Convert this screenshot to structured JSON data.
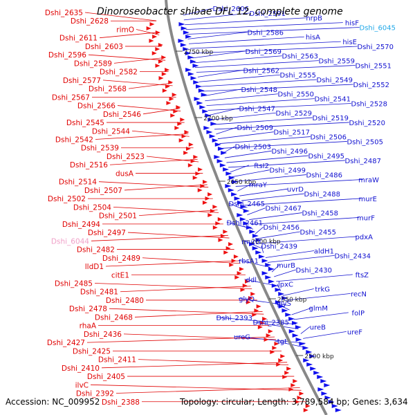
{
  "title": "Dinoroseobacter shibae DFL 12, complete genome",
  "footer": {
    "accession": "Accession: NC_009952",
    "summary": "Topology: circular; Length: 3,789,584 bp; Genes: 3,634"
  },
  "colors": {
    "left_labels": "#e00000",
    "right_labels": "#1010d0",
    "highlight": "#20a8e8",
    "ruler": "#888888",
    "tick_mark": "#2a8a2a",
    "left_arrows": "#ee1111",
    "right_arrows": "#1111ee"
  },
  "ruler_ticks": [
    "2750 kbp",
    "2700 kbp",
    "2650 kbp",
    "2600 kbp",
    "2550 kbp",
    "2500 kbp"
  ],
  "left_labels": [
    "Dshi_2635",
    "Dshi_2628",
    "rimO",
    "Dshi_2611",
    "Dshi_2603",
    "Dshi_2596",
    "Dshi_2589",
    "Dshi_2582",
    "Dshi_2577",
    "Dshi_2568",
    "Dshi_2567",
    "Dshi_2566",
    "Dshi_2546",
    "Dshi_2545",
    "Dshi_2544",
    "Dshi_2542",
    "Dshi_2539",
    "Dshi_2523",
    "Dshi_2516",
    "dusA",
    "Dshi_2514",
    "Dshi_2507",
    "Dshi_2502",
    "Dshi_2504",
    "Dshi_2501",
    "Dshi_2494",
    "Dshi_2497",
    "Dshi_6044",
    "Dshi_2482",
    "Dshi_2489",
    "lldD1",
    "citE1",
    "Dshi_2485",
    "Dshi_2481",
    "Dshi_2480",
    "Dshi_2478",
    "Dshi_2468",
    "rhaA",
    "Dshi_2436",
    "Dshi_2427",
    "Dshi_2425",
    "Dshi_2411",
    "Dshi_2410",
    "Dshi_2405",
    "ilvC",
    "Dshi_2392",
    "Dshi_2388"
  ],
  "right_labels": [
    "Dshi_2606",
    "Dshi_2591",
    "hrpB",
    "hisF",
    "Dshi_6045",
    "Dshi_2586",
    "hisA",
    "hisE",
    "Dshi_2570",
    "Dshi_2569",
    "Dshi_2563",
    "Dshi_2559",
    "Dshi_2551",
    "Dshi_2562",
    "Dshi_2555",
    "Dshi_2549",
    "Dshi_2552",
    "Dshi_2548",
    "Dshi_2550",
    "Dshi_2541",
    "Dshi_2528",
    "Dshi_2547",
    "Dshi_2529",
    "Dshi_2519",
    "Dshi_2520",
    "Dshi_2509",
    "Dshi_2517",
    "Dshi_2506",
    "Dshi_2505",
    "Dshi_2503",
    "Dshi_2496",
    "Dshi_2495",
    "Dshi_2487",
    "ftsI2",
    "Dshi_2499",
    "Dshi_2486",
    "mraW",
    "mraY",
    "uvrD",
    "Dshi_2488",
    "murE",
    "Dshi_2465",
    "Dshi_2467",
    "Dshi_2458",
    "murF",
    "Dshi_2461",
    "Dshi_2456",
    "Dshi_2455",
    "pdxA",
    "murD",
    "Dshi_2439",
    "aldH1",
    "Dshi_2434",
    "rbsA1",
    "murB",
    "Dshi_2430",
    "ftsZ",
    "ddl",
    "lpxC",
    "trkG",
    "recN",
    "glyQ",
    "glyS",
    "glmM",
    "folP",
    "Dshi_2393",
    "Dshi_2385",
    "ureB",
    "ureF",
    "ureG",
    "tgt"
  ]
}
